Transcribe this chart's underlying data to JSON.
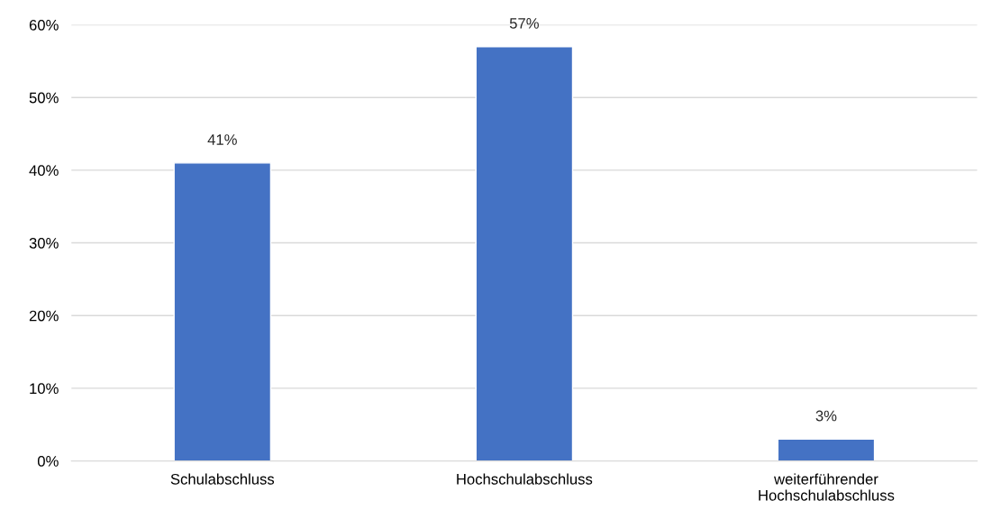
{
  "chart_data": {
    "type": "bar",
    "categories": [
      "Schulabschluss",
      "Hochschulabschluss",
      "weiterführender\nHochschulabschluss"
    ],
    "values": [
      41,
      57,
      3
    ],
    "value_labels": [
      "41%",
      "57%",
      "3%"
    ],
    "color": "#4472c4",
    "ylim": [
      0,
      60
    ],
    "yticks": [
      {
        "value": 0,
        "label": "0%"
      },
      {
        "value": 10,
        "label": "10%"
      },
      {
        "value": 20,
        "label": "20%"
      },
      {
        "value": 30,
        "label": "30%"
      },
      {
        "value": 40,
        "label": "40%"
      },
      {
        "value": 50,
        "label": "50%"
      },
      {
        "value": 60,
        "label": "60%"
      }
    ],
    "grid": "y"
  }
}
